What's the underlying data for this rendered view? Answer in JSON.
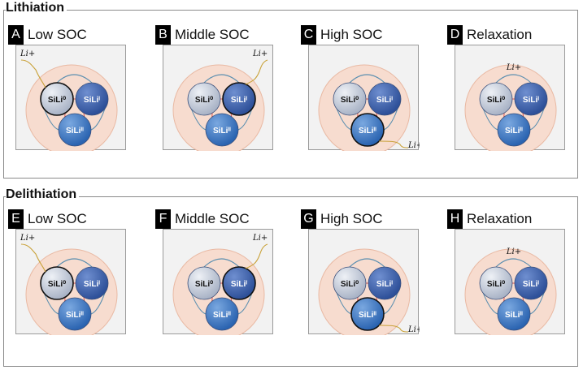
{
  "groups": {
    "lithiation": {
      "title": "Lithiation",
      "panels": [
        {
          "letter": "A",
          "title": "Low SOC",
          "state": "low",
          "ion": "Li+"
        },
        {
          "letter": "B",
          "title": "Middle SOC",
          "state": "middle",
          "ion": "Li+"
        },
        {
          "letter": "C",
          "title": "High SOC",
          "state": "high",
          "ion": "Li+"
        },
        {
          "letter": "D",
          "title": "Relaxation",
          "state": "relax",
          "ion": "Li+"
        }
      ]
    },
    "delithiation": {
      "title": "Delithiation",
      "panels": [
        {
          "letter": "E",
          "title": "Low SOC",
          "state": "low",
          "ion": "Li+"
        },
        {
          "letter": "F",
          "title": "Middle SOC",
          "state": "middle",
          "ion": "Li+"
        },
        {
          "letter": "G",
          "title": "High SOC",
          "state": "high",
          "ion": "Li+"
        },
        {
          "letter": "H",
          "title": "Relaxation",
          "state": "relax",
          "ion": "Li+"
        }
      ]
    }
  },
  "particles": {
    "p0": "SiLi⁰",
    "p1": "SiLiᴵ",
    "p2": "SiLiᴵᴵ"
  },
  "colors": {
    "shell": "#f7dccf",
    "p0_fill": "#a9b3c6",
    "p1_fill": "#2d4f98",
    "p2_fill": "#2a63b0",
    "path_blue": "#5b8fb0",
    "path_red": "#d9534f",
    "ion_line": "#c9a23a"
  }
}
